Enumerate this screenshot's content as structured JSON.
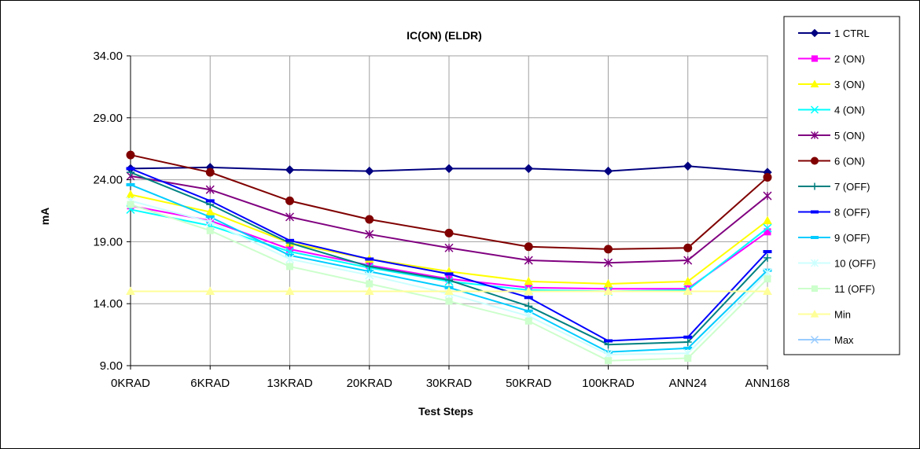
{
  "chart_data": {
    "type": "line",
    "title": "IC(ON) (ELDR)",
    "xlabel": "Test Steps",
    "ylabel": "mA",
    "ylim": [
      9.0,
      34.0
    ],
    "yticks": [
      "9.00",
      "14.00",
      "19.00",
      "24.00",
      "29.00",
      "34.00"
    ],
    "categories": [
      "0KRAD",
      "6KRAD",
      "13KRAD",
      "20KRAD",
      "30KRAD",
      "50KRAD",
      "100KRAD",
      "ANN24",
      "ANN168"
    ],
    "grid": true,
    "legend": "right",
    "series": [
      {
        "name": "1 CTRL",
        "color": "#000080",
        "marker": "diamond",
        "values": [
          24.9,
          25.0,
          24.8,
          24.7,
          24.9,
          24.9,
          24.7,
          25.1,
          24.6
        ]
      },
      {
        "name": "2 (ON)",
        "color": "#ff00ff",
        "marker": "square",
        "values": [
          21.9,
          20.7,
          18.4,
          17.1,
          16.0,
          15.3,
          15.2,
          15.2,
          19.8
        ]
      },
      {
        "name": "3 (ON)",
        "color": "#ffff00",
        "marker": "triangle",
        "values": [
          22.8,
          21.4,
          18.9,
          17.6,
          16.6,
          15.8,
          15.6,
          15.8,
          20.7
        ]
      },
      {
        "name": "4 (ON)",
        "color": "#00ffff",
        "marker": "x",
        "values": [
          21.6,
          20.3,
          18.2,
          16.9,
          15.8,
          15.1,
          15.0,
          15.1,
          20.1
        ]
      },
      {
        "name": "5 (ON)",
        "color": "#800080",
        "marker": "star",
        "values": [
          24.3,
          23.2,
          21.0,
          19.6,
          18.5,
          17.5,
          17.3,
          17.5,
          22.7
        ]
      },
      {
        "name": "6 (ON)",
        "color": "#800000",
        "marker": "circle",
        "values": [
          26.0,
          24.6,
          22.3,
          20.8,
          19.7,
          18.6,
          18.4,
          18.5,
          24.2
        ]
      },
      {
        "name": "7 (OFF)",
        "color": "#008080",
        "marker": "plus",
        "values": [
          24.6,
          22.0,
          18.9,
          17.0,
          15.9,
          13.8,
          10.7,
          10.9,
          17.7
        ]
      },
      {
        "name": "8 (OFF)",
        "color": "#0000ff",
        "marker": "dash",
        "values": [
          24.9,
          22.3,
          19.1,
          17.6,
          16.4,
          14.5,
          11.0,
          11.3,
          18.2
        ]
      },
      {
        "name": "9 (OFF)",
        "color": "#00ccff",
        "marker": "dash",
        "values": [
          23.6,
          21.0,
          17.9,
          16.6,
          15.3,
          13.4,
          10.1,
          10.4,
          16.7
        ]
      },
      {
        "name": "10 (OFF)",
        "color": "#ccffff",
        "marker": "star",
        "values": [
          22.3,
          20.6,
          17.6,
          16.3,
          14.8,
          13.0,
          9.9,
          10.0,
          16.5
        ]
      },
      {
        "name": "11 (OFF)",
        "color": "#ccffcc",
        "marker": "square",
        "values": [
          22.0,
          19.9,
          17.0,
          15.6,
          14.2,
          12.6,
          9.4,
          9.6,
          16.0
        ]
      },
      {
        "name": "Min",
        "color": "#ffff99",
        "marker": "triangle",
        "values": [
          15.0,
          15.0,
          15.0,
          15.0,
          15.0,
          15.0,
          15.0,
          15.0,
          15.0
        ]
      },
      {
        "name": "Max",
        "color": "#99ccff",
        "marker": "x",
        "values": [
          null,
          null,
          null,
          null,
          null,
          null,
          null,
          null,
          null
        ]
      }
    ]
  }
}
